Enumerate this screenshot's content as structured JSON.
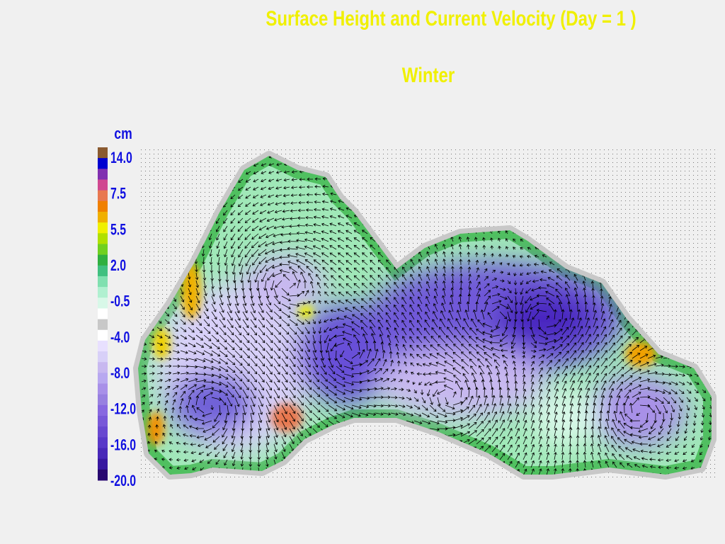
{
  "header": {
    "title": "Surface Height and Current Velocity  (Day = 1 )",
    "subtitle": "Winter"
  },
  "colorbar": {
    "unit": "cm",
    "labels": [
      "14.0",
      "7.5",
      "5.5",
      "2.0",
      "-0.5",
      "-4.0",
      "-8.0",
      "-12.0",
      "-16.0",
      "-20.0"
    ],
    "colors": [
      "#8a5a30",
      "#0000d0",
      "#8030b0",
      "#d04890",
      "#e87850",
      "#f08000",
      "#f0b000",
      "#f0f000",
      "#b0e000",
      "#70d020",
      "#30b040",
      "#40c080",
      "#80e0b0",
      "#b0f0d0",
      "#d8f8e8",
      "#ffffff",
      "#c8c8c8",
      "#ffffff",
      "#e8e0ff",
      "#d8d0f8",
      "#c8b8f0",
      "#b8a8f0",
      "#a890e8",
      "#9880e0",
      "#8868e0",
      "#7858d8",
      "#6848d0",
      "#5838c8",
      "#4828b8",
      "#3818a0",
      "#280870"
    ]
  }
}
